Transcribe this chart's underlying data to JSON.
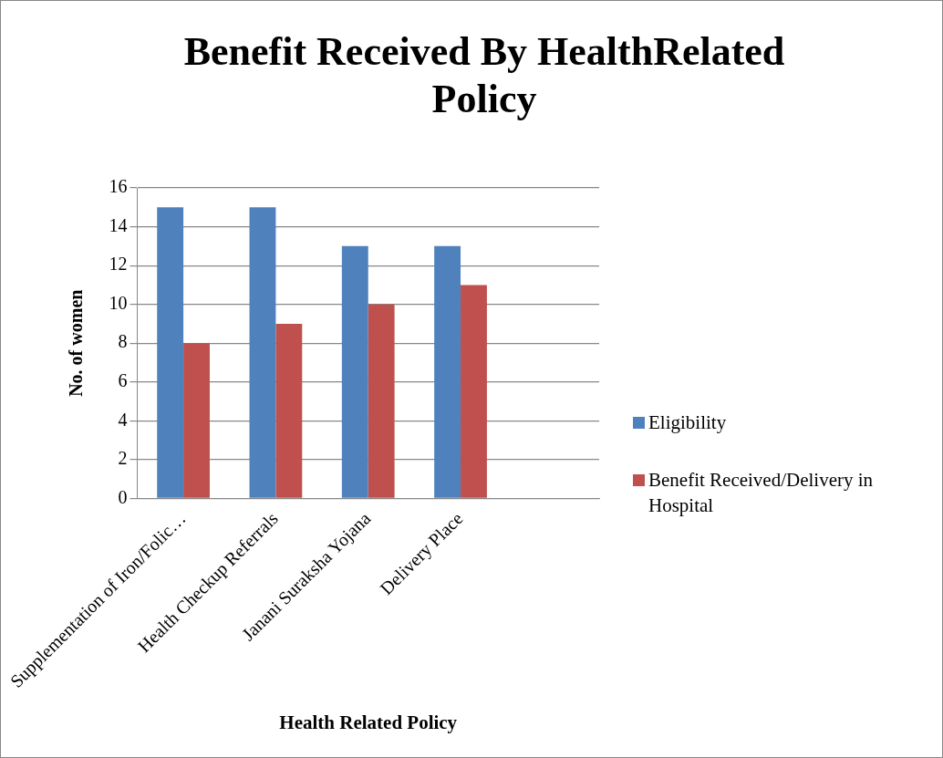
{
  "chart_data": {
    "type": "bar",
    "title": "Benefit Received By HealthRelated Policy",
    "xlabel": "Health Related Policy",
    "ylabel": "No. of women",
    "categories": [
      "Supplementation of Iron/Folic…",
      "Health Checkup Referrals",
      "Janani Suraksha Yojana",
      "Delivery Place",
      null
    ],
    "series": [
      {
        "name": "Eligibility",
        "color": "#4f81bd",
        "values": [
          15,
          15,
          13,
          13,
          null
        ]
      },
      {
        "name": "Benefit Received/Delivery in Hospital",
        "color": "#c0504d",
        "values": [
          8,
          9,
          10,
          11,
          null
        ]
      }
    ],
    "ylim": [
      0,
      16
    ],
    "yticks": [
      0,
      2,
      4,
      6,
      8,
      10,
      12,
      14,
      16
    ],
    "grid": "y",
    "legend": "right"
  }
}
